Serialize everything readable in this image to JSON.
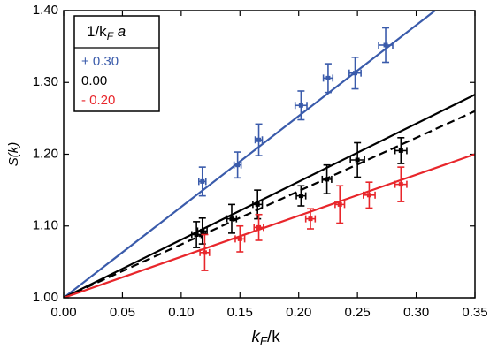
{
  "chart_data": {
    "type": "scatter",
    "xlabel": [
      "k",
      "F",
      "/k"
    ],
    "ylabel": "S(k)",
    "legend_title": [
      "1/k",
      "F",
      " a"
    ],
    "legend": "upper left",
    "xlim": [
      0,
      0.35
    ],
    "ylim": [
      1.0,
      1.4
    ],
    "xticks": [
      {
        "value": 0,
        "label": "0.00"
      },
      {
        "value": 0.05,
        "label": "0.05"
      },
      {
        "value": 0.1,
        "label": "0.10"
      },
      {
        "value": 0.15,
        "label": "0.15"
      },
      {
        "value": 0.2,
        "label": "0.20"
      },
      {
        "value": 0.25,
        "label": "0.25"
      },
      {
        "value": 0.3,
        "label": "0.30"
      },
      {
        "value": 0.35,
        "label": "0.35"
      }
    ],
    "yticks": [
      {
        "value": 1.0,
        "label": "1.00"
      },
      {
        "value": 1.1,
        "label": "1.10"
      },
      {
        "value": 1.2,
        "label": "1.20"
      },
      {
        "value": 1.3,
        "label": "1.30"
      },
      {
        "value": 1.4,
        "label": "1.40"
      }
    ],
    "series": [
      {
        "name": "+ 0.30",
        "color": "#3a5bab",
        "x": [
          0.118,
          0.148,
          0.166,
          0.202,
          0.225,
          0.248,
          0.274
        ],
        "values": [
          1.162,
          1.185,
          1.22,
          1.268,
          1.306,
          1.313,
          1.352
        ],
        "xerr": [
          0.003,
          0.003,
          0.003,
          0.005,
          0.004,
          0.005,
          0.006
        ],
        "yerr": [
          0.02,
          0.018,
          0.022,
          0.02,
          0.02,
          0.022,
          0.024
        ]
      },
      {
        "name": "0.00",
        "color": "#000000",
        "x": [
          0.113,
          0.118,
          0.143,
          0.165,
          0.202,
          0.224,
          0.25,
          0.287
        ],
        "values": [
          1.088,
          1.093,
          1.11,
          1.13,
          1.142,
          1.165,
          1.192,
          1.205
        ],
        "xerr": [
          0.004,
          0.004,
          0.004,
          0.004,
          0.004,
          0.004,
          0.006,
          0.005
        ],
        "yerr": [
          0.018,
          0.018,
          0.02,
          0.02,
          0.014,
          0.02,
          0.024,
          0.018
        ],
        "dashed_line": true
      },
      {
        "name": "- 0.20",
        "color": "#e8262b",
        "x": [
          0.12,
          0.15,
          0.166,
          0.21,
          0.235,
          0.26,
          0.287
        ],
        "values": [
          1.063,
          1.082,
          1.098,
          1.11,
          1.13,
          1.143,
          1.158
        ],
        "xerr": [
          0.004,
          0.004,
          0.004,
          0.004,
          0.004,
          0.005,
          0.005
        ],
        "yerr": [
          0.025,
          0.018,
          0.018,
          0.014,
          0.026,
          0.018,
          0.024
        ]
      }
    ],
    "lines": [
      {
        "color": "#3a5bab",
        "dashed": false,
        "x": [
          0,
          0.316
        ],
        "y": [
          1.0,
          1.4
        ]
      },
      {
        "color": "#000000",
        "dashed": false,
        "x": [
          0,
          0.35
        ],
        "y": [
          1.0,
          1.283
        ]
      },
      {
        "color": "#000000",
        "dashed": true,
        "x": [
          0,
          0.35
        ],
        "y": [
          1.0,
          1.26
        ]
      },
      {
        "color": "#e8262b",
        "dashed": false,
        "x": [
          0,
          0.35
        ],
        "y": [
          1.0,
          1.2
        ]
      }
    ]
  }
}
